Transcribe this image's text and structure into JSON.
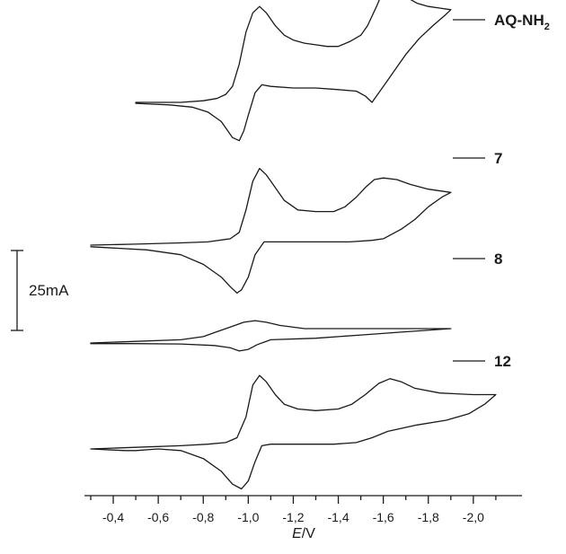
{
  "chart_data": {
    "type": "line",
    "title": "",
    "xlabel": {
      "italic": "E",
      "rest": "/V"
    },
    "ylabel": "",
    "xlim": [
      -0.3,
      -2.15
    ],
    "x_ticks": [
      {
        "value": -0.4,
        "label": "-0,4"
      },
      {
        "value": -0.6,
        "label": "-0,6"
      },
      {
        "value": -0.8,
        "label": "-0,8"
      },
      {
        "value": -1.0,
        "label": "-1,0"
      },
      {
        "value": -1.2,
        "label": "-1,2"
      },
      {
        "value": -1.4,
        "label": "-1,4"
      },
      {
        "value": -1.6,
        "label": "-1,6"
      },
      {
        "value": -1.8,
        "label": "-1,8"
      },
      {
        "value": -2.0,
        "label": "-2,0"
      }
    ],
    "scale_bar": {
      "label": "25mA",
      "value": 25,
      "unit": "mA"
    },
    "series": [
      {
        "name": "AQ-NH₂",
        "forward": [
          [
            -0.5,
            0
          ],
          [
            -0.6,
            0
          ],
          [
            -0.7,
            0
          ],
          [
            -0.8,
            0.5
          ],
          [
            -0.86,
            1.2
          ],
          [
            -0.9,
            2.5
          ],
          [
            -0.93,
            5
          ],
          [
            -0.96,
            12
          ],
          [
            -0.99,
            22
          ],
          [
            -1.02,
            28
          ],
          [
            -1.05,
            30
          ],
          [
            -1.08,
            28
          ],
          [
            -1.12,
            24
          ],
          [
            -1.16,
            21
          ],
          [
            -1.2,
            19.5
          ],
          [
            -1.25,
            18.5
          ],
          [
            -1.3,
            18
          ],
          [
            -1.35,
            17.5
          ],
          [
            -1.4,
            17.5
          ],
          [
            -1.45,
            19
          ],
          [
            -1.5,
            21
          ],
          [
            -1.53,
            24
          ],
          [
            -1.57,
            30
          ],
          [
            -1.6,
            35
          ],
          [
            -1.63,
            37
          ],
          [
            -1.66,
            35
          ],
          [
            -1.7,
            33
          ],
          [
            -1.75,
            31
          ],
          [
            -1.8,
            30
          ],
          [
            -1.85,
            29.5
          ],
          [
            -1.9,
            29
          ]
        ],
        "reverse": [
          [
            -1.9,
            29
          ],
          [
            -1.87,
            27
          ],
          [
            -1.82,
            24
          ],
          [
            -1.76,
            20
          ],
          [
            -1.7,
            15
          ],
          [
            -1.65,
            10
          ],
          [
            -1.6,
            5
          ],
          [
            -1.57,
            2
          ],
          [
            -1.55,
            0
          ],
          [
            -1.52,
            2
          ],
          [
            -1.48,
            3.5
          ],
          [
            -1.4,
            4
          ],
          [
            -1.3,
            4.5
          ],
          [
            -1.2,
            4.5
          ],
          [
            -1.1,
            5
          ],
          [
            -1.06,
            5.5
          ],
          [
            -1.03,
            3
          ],
          [
            -1.0,
            -4
          ],
          [
            -0.98,
            -9
          ],
          [
            -0.96,
            -12
          ],
          [
            -0.93,
            -11
          ],
          [
            -0.88,
            -6
          ],
          [
            -0.82,
            -3
          ],
          [
            -0.75,
            -1.5
          ],
          [
            -0.65,
            -0.8
          ],
          [
            -0.5,
            -0.3
          ]
        ]
      },
      {
        "name": "7",
        "forward": [
          [
            -0.3,
            0
          ],
          [
            -0.5,
            0.3
          ],
          [
            -0.7,
            0.7
          ],
          [
            -0.82,
            1
          ],
          [
            -0.92,
            2
          ],
          [
            -0.96,
            4
          ],
          [
            -0.99,
            11
          ],
          [
            -1.02,
            20
          ],
          [
            -1.05,
            24
          ],
          [
            -1.08,
            22
          ],
          [
            -1.12,
            18
          ],
          [
            -1.16,
            14
          ],
          [
            -1.22,
            11
          ],
          [
            -1.3,
            10.5
          ],
          [
            -1.38,
            10.5
          ],
          [
            -1.43,
            12
          ],
          [
            -1.48,
            15
          ],
          [
            -1.52,
            18
          ],
          [
            -1.56,
            20.5
          ],
          [
            -1.6,
            21
          ],
          [
            -1.66,
            20.5
          ],
          [
            -1.72,
            19
          ],
          [
            -1.8,
            17.5
          ],
          [
            -1.9,
            16.5
          ]
        ],
        "reverse": [
          [
            -1.9,
            16.5
          ],
          [
            -1.86,
            15
          ],
          [
            -1.8,
            12
          ],
          [
            -1.74,
            8
          ],
          [
            -1.68,
            5
          ],
          [
            -1.6,
            2
          ],
          [
            -1.55,
            1.5
          ],
          [
            -1.45,
            1
          ],
          [
            -1.3,
            1
          ],
          [
            -1.15,
            1
          ],
          [
            -1.07,
            1
          ],
          [
            -1.03,
            -3
          ],
          [
            -1.0,
            -10
          ],
          [
            -0.97,
            -14
          ],
          [
            -0.95,
            -15
          ],
          [
            -0.92,
            -13
          ],
          [
            -0.88,
            -10
          ],
          [
            -0.8,
            -6
          ],
          [
            -0.7,
            -3
          ],
          [
            -0.55,
            -1.5
          ],
          [
            -0.3,
            -0.5
          ]
        ]
      },
      {
        "name": "8",
        "forward": [
          [
            -0.3,
            0
          ],
          [
            -0.5,
            0.5
          ],
          [
            -0.7,
            1
          ],
          [
            -0.8,
            2
          ],
          [
            -0.86,
            3.5
          ],
          [
            -0.92,
            5
          ],
          [
            -0.98,
            6.5
          ],
          [
            -1.03,
            7
          ],
          [
            -1.08,
            6.5
          ],
          [
            -1.14,
            5.5
          ],
          [
            -1.25,
            4.5
          ],
          [
            -1.4,
            4.5
          ],
          [
            -1.55,
            4.5
          ],
          [
            -1.7,
            4.5
          ],
          [
            -1.9,
            4.5
          ]
        ],
        "reverse": [
          [
            -1.9,
            4.5
          ],
          [
            -1.7,
            3.5
          ],
          [
            -1.5,
            2.5
          ],
          [
            -1.3,
            1.5
          ],
          [
            -1.1,
            1
          ],
          [
            -1.04,
            -0.5
          ],
          [
            -1.0,
            -2
          ],
          [
            -0.96,
            -2.5
          ],
          [
            -0.92,
            -1.5
          ],
          [
            -0.85,
            -0.8
          ],
          [
            -0.7,
            -0.3
          ],
          [
            -0.5,
            -0.2
          ],
          [
            -0.3,
            -0.2
          ]
        ]
      },
      {
        "name": "12",
        "forward": [
          [
            -0.3,
            0
          ],
          [
            -0.5,
            0.5
          ],
          [
            -0.7,
            1
          ],
          [
            -0.82,
            1.5
          ],
          [
            -0.9,
            2
          ],
          [
            -0.95,
            3.5
          ],
          [
            -0.99,
            10
          ],
          [
            -1.02,
            20
          ],
          [
            -1.05,
            23
          ],
          [
            -1.08,
            21
          ],
          [
            -1.12,
            17
          ],
          [
            -1.16,
            14
          ],
          [
            -1.22,
            12.5
          ],
          [
            -1.3,
            12
          ],
          [
            -1.4,
            12.5
          ],
          [
            -1.46,
            14
          ],
          [
            -1.52,
            17
          ],
          [
            -1.58,
            20.5
          ],
          [
            -1.63,
            22
          ],
          [
            -1.68,
            21
          ],
          [
            -1.74,
            19
          ],
          [
            -1.85,
            17.5
          ],
          [
            -2.0,
            17
          ],
          [
            -2.1,
            17
          ]
        ],
        "reverse": [
          [
            -2.1,
            17
          ],
          [
            -2.05,
            14
          ],
          [
            -1.98,
            11
          ],
          [
            -1.88,
            9
          ],
          [
            -1.75,
            7.5
          ],
          [
            -1.62,
            5.5
          ],
          [
            -1.55,
            3.5
          ],
          [
            -1.48,
            2
          ],
          [
            -1.38,
            1.5
          ],
          [
            -1.25,
            1.5
          ],
          [
            -1.1,
            1.5
          ],
          [
            -1.06,
            1
          ],
          [
            -1.03,
            -4
          ],
          [
            -1.0,
            -10
          ],
          [
            -0.97,
            -12.5
          ],
          [
            -0.93,
            -11
          ],
          [
            -0.88,
            -7
          ],
          [
            -0.8,
            -3
          ],
          [
            -0.7,
            -0.5
          ],
          [
            -0.6,
            0
          ],
          [
            -0.5,
            -0.5
          ],
          [
            -0.45,
            -0.5
          ],
          [
            -0.3,
            0
          ]
        ]
      }
    ]
  }
}
